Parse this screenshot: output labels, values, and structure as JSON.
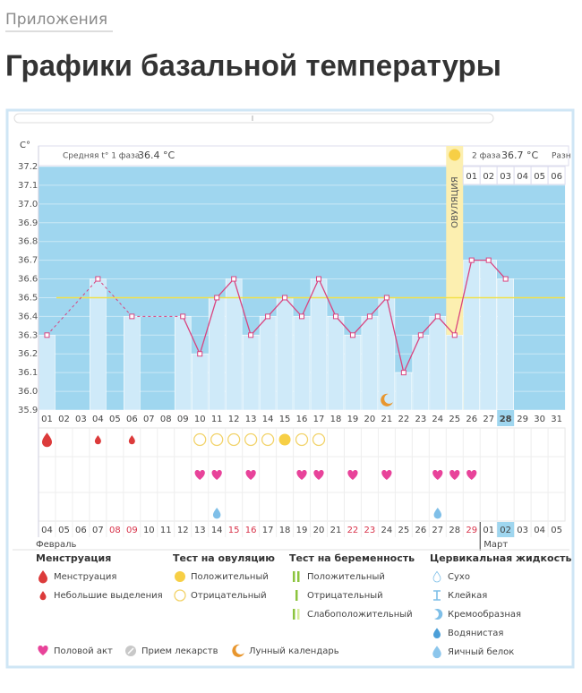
{
  "breadcrumb": "Приложения",
  "heading": "Графики базальной температуры",
  "chart_data": {
    "type": "line",
    "y_unit": "C°",
    "phase1_label": "Средняя t° 1 фаза",
    "phase1_value": "36.4 °C",
    "phase2_label": "2 фаза",
    "phase2_value": "36.7 °C",
    "diff_label": "Разн",
    "ovulation_label": "ОВУЛЯЦИЯ",
    "ovulation_day": "25",
    "today": "28",
    "categories": [
      "01",
      "02",
      "03",
      "04",
      "05",
      "06",
      "07",
      "08",
      "09",
      "10",
      "11",
      "12",
      "13",
      "14",
      "15",
      "16",
      "17",
      "18",
      "19",
      "20",
      "21",
      "22",
      "23",
      "24",
      "25",
      "26",
      "27",
      "28",
      "29",
      "30",
      "31"
    ],
    "values": [
      36.3,
      null,
      null,
      36.6,
      null,
      36.4,
      null,
      null,
      36.4,
      36.2,
      36.5,
      36.6,
      36.3,
      36.4,
      36.5,
      36.4,
      36.6,
      36.4,
      36.3,
      36.4,
      36.5,
      36.1,
      36.3,
      36.4,
      36.3,
      36.7,
      36.7,
      36.6,
      null,
      null,
      null
    ],
    "post_ovulation_days": [
      "01",
      "02",
      "03",
      "04",
      "05",
      "06"
    ],
    "coverline": 36.5,
    "ylim": [
      35.9,
      37.2
    ],
    "yticks": [
      {
        "value": 36,
        "label": "36.0"
      },
      36.1,
      36.2,
      36.3,
      36.4,
      36.5,
      36.6,
      36.7,
      36.8,
      36.9,
      {
        "value": 37,
        "label": "37.0"
      },
      37.1,
      37.2,
      35.9
    ],
    "color": "#d9437f",
    "bar_color": "#cfeaf9",
    "plot_color": "#9fd6ef",
    "coverline_color": "#f2e14a",
    "menstruation_days": [
      "01"
    ],
    "spotting_days": [
      "04",
      "06"
    ],
    "ovulation_test_positive": [
      "15"
    ],
    "ovulation_test_negative": [
      "10",
      "11",
      "12",
      "13",
      "14",
      "16",
      "17"
    ],
    "intercourse_days": [
      "10",
      "11",
      "13",
      "16",
      "17",
      "19",
      "21",
      "24",
      "25",
      "26"
    ],
    "egg_white_days": [
      "11",
      "24"
    ],
    "lunar_days": [
      "21"
    ],
    "dates": [
      "04",
      "05",
      "06",
      "07",
      "08",
      "09",
      "10",
      "11",
      "12",
      "13",
      "14",
      "15",
      "16",
      "17",
      "18",
      "19",
      "20",
      "21",
      "22",
      "23",
      "24",
      "25",
      "26",
      "27",
      "28",
      "29",
      "01",
      "02",
      "03",
      "04",
      "05"
    ],
    "weekend": [
      false,
      false,
      false,
      false,
      true,
      true,
      false,
      false,
      false,
      false,
      false,
      true,
      true,
      false,
      false,
      false,
      false,
      false,
      true,
      true,
      false,
      false,
      false,
      false,
      false,
      true,
      false,
      false,
      false,
      false,
      false
    ],
    "months": [
      "Февраль",
      "Март"
    ]
  },
  "legend": {
    "sections": [
      {
        "title": "Менструация",
        "items": [
          "Менструация",
          "Небольшие выделения"
        ]
      },
      {
        "title": "Тест на овуляцию",
        "items": [
          "Положительный",
          "Отрицательный"
        ]
      },
      {
        "title": "Тест на беременность",
        "items": [
          "Положительный",
          "Отрицательный",
          "Слабоположительный"
        ]
      },
      {
        "title": "Цервикальная жидкость",
        "items": [
          "Сухо",
          "Клейкая",
          "Кремообразная",
          "Водянистая",
          "Яичный белок"
        ]
      }
    ],
    "bottom": [
      "Половой акт",
      "Прием лекарств",
      "Лунный календарь"
    ]
  }
}
